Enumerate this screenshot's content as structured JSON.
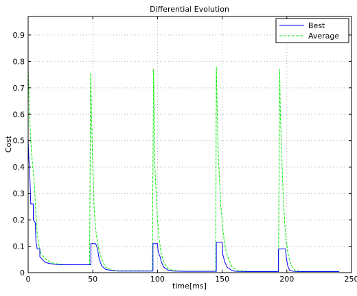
{
  "chart_data": {
    "type": "line",
    "title": "Differential Evolution",
    "xlabel": "time[ms]",
    "ylabel": "Cost",
    "xlim": [
      0,
      250
    ],
    "ylim": [
      0,
      0.97
    ],
    "xticks": [
      0,
      50,
      100,
      150,
      200,
      250
    ],
    "yticks": [
      0,
      0.1,
      0.2,
      0.3,
      0.4,
      0.5,
      0.6,
      0.7,
      0.8,
      0.9
    ],
    "grid": true,
    "legend_position": "top-right",
    "series": [
      {
        "name": "Best",
        "color": "#0000ff",
        "style": "solid",
        "points": [
          [
            0,
            0.5
          ],
          [
            0.6,
            0.43
          ],
          [
            1.2,
            0.38
          ],
          [
            2,
            0.26
          ],
          [
            4,
            0.26
          ],
          [
            4,
            0.2
          ],
          [
            5.5,
            0.19
          ],
          [
            6,
            0.12
          ],
          [
            7,
            0.09
          ],
          [
            9,
            0.09
          ],
          [
            9,
            0.06
          ],
          [
            11,
            0.05
          ],
          [
            13,
            0.04
          ],
          [
            16,
            0.035
          ],
          [
            20,
            0.032
          ],
          [
            25,
            0.03
          ],
          [
            30,
            0.03
          ],
          [
            35,
            0.03
          ],
          [
            40,
            0.03
          ],
          [
            44,
            0.03
          ],
          [
            48.5,
            0.03
          ],
          [
            48.5,
            0.11
          ],
          [
            52,
            0.11
          ],
          [
            53,
            0.1
          ],
          [
            54,
            0.08
          ],
          [
            55,
            0.05
          ],
          [
            57,
            0.025
          ],
          [
            60,
            0.012
          ],
          [
            65,
            0.008
          ],
          [
            70,
            0.006
          ],
          [
            80,
            0.006
          ],
          [
            90,
            0.006
          ],
          [
            96.5,
            0.006
          ],
          [
            96.5,
            0.11
          ],
          [
            100,
            0.11
          ],
          [
            100.5,
            0.08
          ],
          [
            102,
            0.06
          ],
          [
            103,
            0.04
          ],
          [
            105,
            0.02
          ],
          [
            108,
            0.01
          ],
          [
            112,
            0.006
          ],
          [
            120,
            0.005
          ],
          [
            130,
            0.005
          ],
          [
            145.5,
            0.005
          ],
          [
            145.5,
            0.115
          ],
          [
            150,
            0.115
          ],
          [
            150.5,
            0.07
          ],
          [
            152,
            0.04
          ],
          [
            154,
            0.02
          ],
          [
            157,
            0.01
          ],
          [
            160,
            0.005
          ],
          [
            170,
            0.004
          ],
          [
            180,
            0.004
          ],
          [
            193.5,
            0.004
          ],
          [
            193.5,
            0.09
          ],
          [
            199,
            0.09
          ],
          [
            199.5,
            0.06
          ],
          [
            200.5,
            0.03
          ],
          [
            202,
            0.01
          ],
          [
            205,
            0.005
          ],
          [
            210,
            0.004
          ],
          [
            220,
            0.004
          ],
          [
            230,
            0.004
          ],
          [
            240.5,
            0.004
          ]
        ]
      },
      {
        "name": "Average",
        "color": "#00ee00",
        "style": "dashed",
        "points": [
          [
            0,
            0.78
          ],
          [
            0.5,
            0.7
          ],
          [
            1,
            0.6
          ],
          [
            2,
            0.5
          ],
          [
            3,
            0.43
          ],
          [
            4,
            0.38
          ],
          [
            5,
            0.32
          ],
          [
            6,
            0.22
          ],
          [
            7,
            0.15
          ],
          [
            8.5,
            0.1
          ],
          [
            10,
            0.07
          ],
          [
            12,
            0.06
          ],
          [
            14,
            0.05
          ],
          [
            17,
            0.04
          ],
          [
            20,
            0.035
          ],
          [
            25,
            0.032
          ],
          [
            30,
            0.03
          ],
          [
            38,
            0.03
          ],
          [
            47.5,
            0.03
          ],
          [
            48.3,
            0.755
          ],
          [
            49,
            0.6
          ],
          [
            50,
            0.4
          ],
          [
            51,
            0.25
          ],
          [
            52,
            0.17
          ],
          [
            53.5,
            0.12
          ],
          [
            55,
            0.08
          ],
          [
            57,
            0.05
          ],
          [
            60,
            0.02
          ],
          [
            65,
            0.01
          ],
          [
            70,
            0.007
          ],
          [
            80,
            0.007
          ],
          [
            96,
            0.007
          ],
          [
            97,
            0.77
          ],
          [
            97.5,
            0.6
          ],
          [
            98,
            0.4
          ],
          [
            99,
            0.3
          ],
          [
            100,
            0.2
          ],
          [
            101.5,
            0.12
          ],
          [
            103,
            0.07
          ],
          [
            105,
            0.04
          ],
          [
            108,
            0.015
          ],
          [
            112,
            0.008
          ],
          [
            120,
            0.006
          ],
          [
            130,
            0.006
          ],
          [
            145,
            0.006
          ],
          [
            145.5,
            0.78
          ],
          [
            146,
            0.65
          ],
          [
            147,
            0.45
          ],
          [
            148,
            0.35
          ],
          [
            149,
            0.25
          ],
          [
            150,
            0.2
          ],
          [
            151,
            0.14
          ],
          [
            153,
            0.08
          ],
          [
            155,
            0.05
          ],
          [
            158,
            0.02
          ],
          [
            162,
            0.008
          ],
          [
            170,
            0.005
          ],
          [
            180,
            0.005
          ],
          [
            193.5,
            0.005
          ],
          [
            194.5,
            0.77
          ],
          [
            195,
            0.6
          ],
          [
            196,
            0.45
          ],
          [
            197,
            0.32
          ],
          [
            198,
            0.22
          ],
          [
            199,
            0.14
          ],
          [
            201,
            0.07
          ],
          [
            203,
            0.03
          ],
          [
            206,
            0.01
          ],
          [
            210,
            0.005
          ],
          [
            220,
            0.005
          ],
          [
            230,
            0.005
          ],
          [
            240.5,
            0.005
          ]
        ]
      }
    ]
  }
}
